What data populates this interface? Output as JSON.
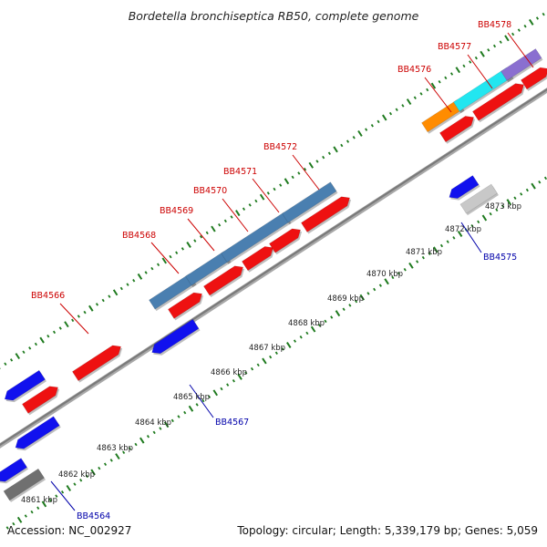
{
  "title": "Bordetella bronchiseptica RB50, complete genome",
  "footer": {
    "accession": "Accession: NC_002927",
    "topology": "Topology: circular; Length: 5,339,179 bp; Genes: 5,059"
  },
  "colors": {
    "backbone": "#7a7a7a",
    "ticks": "#1e7a1e",
    "forward_gene": "#ee1111",
    "reverse_gene": "#1111ee",
    "steel_blue_feature": "#4a7fb0",
    "orange_feature": "#ff8c00",
    "cyan_feature": "#22e6f0",
    "purple_feature": "#8a6fd0",
    "gray_feature": "#c8c8c8",
    "dark_gray_feature": "#707070",
    "forward_label": "#cc0000",
    "reverse_label": "#0000aa"
  },
  "kbp_labels": [
    "4861 kbp",
    "4862 kbp",
    "4863 kbp",
    "4864 kbp",
    "4865 kbp",
    "4866 kbp",
    "4867 kbp",
    "4868 kbp",
    "4869 kbp",
    "4870 kbp",
    "4871 kbp",
    "4872 kbp",
    "4873 kbp"
  ],
  "forward_gene_labels": [
    "BB4566",
    "BB4568",
    "BB4569",
    "BB4570",
    "BB4571",
    "BB4572",
    "BB4576",
    "BB4577",
    "BB4578"
  ],
  "reverse_gene_labels": [
    "BB4564",
    "BB4567",
    "BB4575"
  ]
}
